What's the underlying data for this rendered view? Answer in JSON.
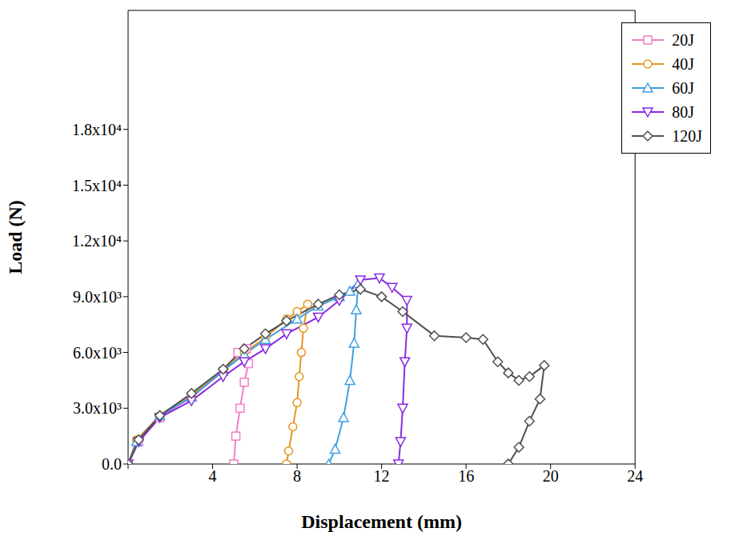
{
  "chart_data": {
    "type": "line",
    "x_label": "Displacement (mm)",
    "y_label": "Load (N)",
    "xlim": [
      0,
      24
    ],
    "xticks": [
      0,
      4,
      8,
      12,
      16,
      20,
      24
    ],
    "ylim": [
      0,
      24400
    ],
    "yticks": [
      {
        "value": 0,
        "label": "0.0"
      },
      {
        "value": 3000,
        "label": "3.0x10³"
      },
      {
        "value": 6000,
        "label": "6.0x10³"
      },
      {
        "value": 9000,
        "label": "9.0x10³"
      },
      {
        "value": 12000,
        "label": "1.2x10⁴"
      },
      {
        "value": 15000,
        "label": "1.5x10⁴"
      },
      {
        "value": 18000,
        "label": "1.8x10⁴"
      }
    ],
    "grid": false,
    "legend": "upper right",
    "series": [
      {
        "name": "20J",
        "color": "#f07fc8",
        "marker": "square",
        "x": [
          0,
          0.5,
          1.5,
          3,
          4.5,
          5.2,
          5.6,
          5.7,
          5.5,
          5.3,
          5.1,
          5.0
        ],
        "values": [
          0,
          1200,
          2500,
          3600,
          5000,
          6000,
          6200,
          5400,
          4400,
          3000,
          1500,
          0
        ]
      },
      {
        "name": "40J",
        "color": "#e6951e",
        "marker": "circle",
        "x": [
          0,
          0.4,
          1.5,
          3,
          4.5,
          5.5,
          6.5,
          7.5,
          8.0,
          8.5,
          8.3,
          8.2,
          8.1,
          8.0,
          7.8,
          7.6,
          7.5
        ],
        "values": [
          0,
          1300,
          2600,
          3700,
          5000,
          6000,
          6800,
          7800,
          8200,
          8600,
          7300,
          6000,
          4700,
          3300,
          2000,
          700,
          0
        ]
      },
      {
        "name": "60J",
        "color": "#3f9fe0",
        "marker": "triangle-up",
        "x": [
          0,
          0.4,
          1.5,
          3,
          4.5,
          5.5,
          6.5,
          8,
          9,
          10,
          10.5,
          10.9,
          10.8,
          10.7,
          10.5,
          10.2,
          9.8,
          9.5
        ],
        "values": [
          0,
          1200,
          2600,
          3600,
          5000,
          5900,
          6700,
          7800,
          8500,
          9000,
          9300,
          9700,
          8300,
          6500,
          4500,
          2500,
          800,
          0
        ]
      },
      {
        "name": "80J",
        "color": "#8a2be2",
        "marker": "triangle-down",
        "x": [
          0,
          0.5,
          1.5,
          3,
          4.5,
          5.5,
          6.5,
          7.5,
          9,
          10,
          11,
          11.9,
          12.5,
          13.2,
          13.2,
          13.1,
          13.0,
          12.9,
          12.8
        ],
        "values": [
          0,
          1200,
          2500,
          3400,
          4700,
          5500,
          6200,
          7000,
          7900,
          8800,
          9900,
          10000,
          9500,
          8800,
          7300,
          5500,
          3000,
          1200,
          0
        ]
      },
      {
        "name": "120J",
        "color": "#505050",
        "marker": "diamond",
        "x": [
          0,
          0.5,
          1.5,
          3,
          4.5,
          5.5,
          6.5,
          7.5,
          9,
          10,
          11,
          12,
          13,
          14.5,
          16,
          16.8,
          17.5,
          18,
          18.5,
          19,
          19.7,
          19.5,
          19,
          18.5,
          18
        ],
        "values": [
          0,
          1300,
          2600,
          3800,
          5100,
          6200,
          7000,
          7700,
          8600,
          9100,
          9400,
          9000,
          8200,
          6900,
          6800,
          6700,
          5500,
          4900,
          4500,
          4700,
          5300,
          3500,
          2300,
          900,
          0
        ]
      }
    ]
  }
}
